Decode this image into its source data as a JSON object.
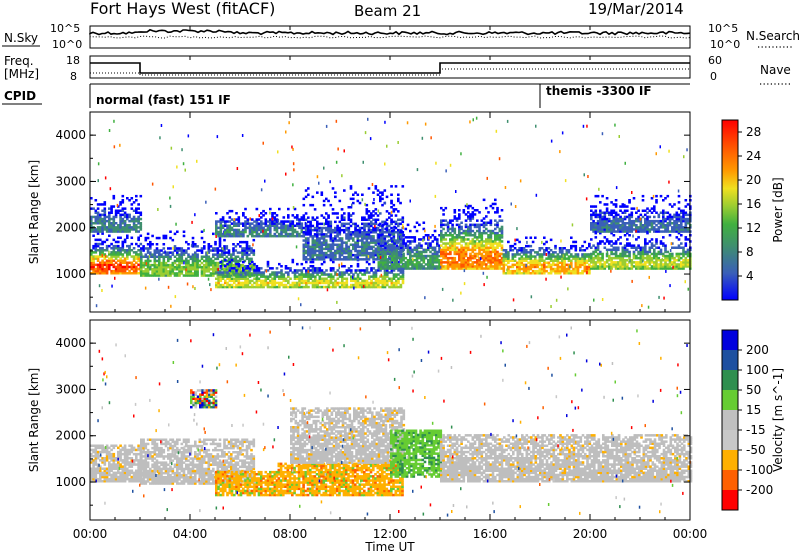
{
  "header": {
    "station": "Fort Hays West (fitACF)",
    "beam": "Beam 21",
    "date": "19/Mar/2014"
  },
  "top_panels": {
    "nsky_label": "N.Sky",
    "nsearch_label": "N.Search",
    "freq_label_1": "Freq.",
    "freq_label_2": "[MHz]",
    "nave_label": "Nave",
    "cpid_label": "CPID",
    "nsky_ticks": [
      "10^5",
      "10^0"
    ],
    "nsearch_ticks": [
      "10^5",
      "10^0"
    ],
    "freq_ticks": [
      "18",
      "8"
    ],
    "nave_ticks": [
      "60",
      "0"
    ]
  },
  "cpid": {
    "mode_left": "normal (fast) 151 IF",
    "mode_right": "themis -3300 IF"
  },
  "colors": {
    "power_scale": [
      "#0000ff",
      "#3a5fb8",
      "#3f8f6f",
      "#40b040",
      "#9acd32",
      "#f0e020",
      "#ff9900",
      "#ff5500",
      "#ff0000"
    ],
    "velocity_scale": [
      "#0000dd",
      "#1e50a0",
      "#2f8f4f",
      "#66cc33",
      "#c0c0c0",
      "#c8c8c8",
      "#ffb000",
      "#ff6000",
      "#ff0000"
    ],
    "velocity_ground": "#bebebe"
  },
  "chart_data": [
    {
      "type": "heatmap",
      "name": "power",
      "ylabel": "Slant Range [km]",
      "xlabel": "Time UT",
      "xlim": [
        0,
        24
      ],
      "ylim": [
        180,
        4500
      ],
      "x_ticks": [
        "00:00",
        "04:00",
        "08:00",
        "12:00",
        "16:00",
        "20:00",
        "00:00"
      ],
      "y_ticks": [
        "1000",
        "2000",
        "3000",
        "4000"
      ],
      "colorbar_label": "Power [dB]",
      "colorbar_ticks": [
        "28",
        "24",
        "20",
        "16",
        "12",
        "8",
        "4"
      ],
      "colorbar_range": [
        0,
        30
      ],
      "bands": [
        {
          "t0": 0.0,
          "t1": 2.0,
          "r0": 1000,
          "r1": 1900,
          "peak": 26
        },
        {
          "t0": 0.0,
          "t1": 2.0,
          "r0": 1900,
          "r1": 2700,
          "peak": 8
        },
        {
          "t0": 2.0,
          "t1": 6.5,
          "r0": 950,
          "r1": 1900,
          "peak": 14
        },
        {
          "t0": 5.0,
          "t1": 8.5,
          "r0": 1800,
          "r1": 2400,
          "peak": 8
        },
        {
          "t0": 5.0,
          "t1": 12.5,
          "r0": 700,
          "r1": 1300,
          "peak": 18
        },
        {
          "t0": 8.5,
          "t1": 12.5,
          "r0": 1300,
          "r1": 2900,
          "peak": 6
        },
        {
          "t0": 11.5,
          "t1": 14.0,
          "r0": 1100,
          "r1": 2100,
          "peak": 10
        },
        {
          "t0": 14.0,
          "t1": 16.5,
          "r0": 1100,
          "r1": 2600,
          "peak": 24
        },
        {
          "t0": 16.5,
          "t1": 20.0,
          "r0": 1000,
          "r1": 1800,
          "peak": 22
        },
        {
          "t0": 20.0,
          "t1": 24.0,
          "r0": 1100,
          "r1": 1900,
          "peak": 16
        },
        {
          "t0": 20.0,
          "t1": 24.0,
          "r0": 1900,
          "r1": 2700,
          "peak": 6
        }
      ]
    },
    {
      "type": "heatmap",
      "name": "velocity",
      "ylabel": "Slant Range [km]",
      "xlabel": "Time UT",
      "xlim": [
        0,
        24
      ],
      "ylim": [
        180,
        4500
      ],
      "x_ticks": [
        "00:00",
        "04:00",
        "08:00",
        "12:00",
        "16:00",
        "20:00",
        "00:00"
      ],
      "y_ticks": [
        "1000",
        "2000",
        "3000",
        "4000"
      ],
      "colorbar_label": "Velocity [m s^-1]",
      "colorbar_ticks": [
        "200",
        "100",
        "50",
        "15",
        "-15",
        "-50",
        "-100",
        "-200"
      ],
      "colorbar_range": [
        -250,
        250
      ],
      "bands": [
        {
          "t0": 0.0,
          "t1": 2.0,
          "r0": 1000,
          "r1": 1800,
          "kind": "ground"
        },
        {
          "t0": 2.0,
          "t1": 6.5,
          "r0": 950,
          "r1": 1900,
          "kind": "ground"
        },
        {
          "t0": 5.0,
          "t1": 7.5,
          "r0": 700,
          "r1": 1200,
          "kind": "negative"
        },
        {
          "t0": 7.5,
          "t1": 12.5,
          "r0": 700,
          "r1": 1400,
          "kind": "negative"
        },
        {
          "t0": 8.0,
          "t1": 12.5,
          "r0": 1400,
          "r1": 2600,
          "kind": "ground"
        },
        {
          "t0": 12.0,
          "t1": 14.0,
          "r0": 1100,
          "r1": 2100,
          "kind": "positive"
        },
        {
          "t0": 14.0,
          "t1": 24.0,
          "r0": 1000,
          "r1": 2000,
          "kind": "ground"
        },
        {
          "t0": 4.0,
          "t1": 5.0,
          "r0": 2600,
          "r1": 3000,
          "kind": "mixed"
        }
      ]
    }
  ]
}
